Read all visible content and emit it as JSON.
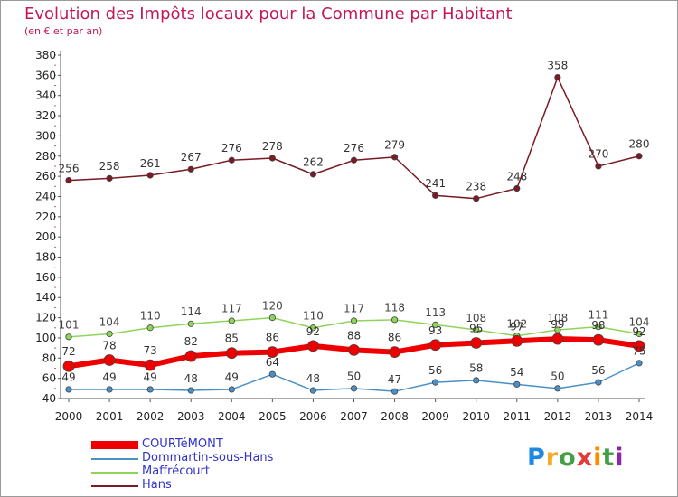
{
  "header": {
    "title": "Evolution des Impôts locaux pour la Commune par Habitant",
    "subtitle": "(en € et par an)"
  },
  "chart_data": {
    "type": "line",
    "title": "Evolution des Impôts locaux pour la Commune par Habitant",
    "subtitle": "(en € et par an)",
    "xlabel": "",
    "ylabel": "",
    "ylim": [
      40,
      380
    ],
    "ytick_step": 20,
    "grid": false,
    "legend_position": "bottom-left",
    "categories": [
      "2000",
      "2001",
      "2002",
      "2003",
      "2004",
      "2005",
      "2006",
      "2007",
      "2008",
      "2009",
      "2010",
      "2011",
      "2012",
      "2013",
      "2014"
    ],
    "series": [
      {
        "name": "Hans",
        "color": "#7a1a24",
        "values": [
          256,
          258,
          261,
          267,
          276,
          278,
          262,
          276,
          279,
          241,
          238,
          248,
          358,
          270,
          280
        ]
      },
      {
        "name": "Maffrécourt",
        "color": "#8fd45a",
        "values": [
          101,
          104,
          110,
          114,
          117,
          120,
          110,
          117,
          118,
          113,
          108,
          102,
          108,
          111,
          104
        ]
      },
      {
        "name": "Dommartin-sous-Hans",
        "color": "#4a90c8",
        "values": [
          49,
          49,
          49,
          48,
          49,
          64,
          48,
          50,
          47,
          56,
          58,
          54,
          50,
          56,
          75
        ]
      },
      {
        "name": "COURTéMONT",
        "color": "#ee0000",
        "values": [
          72,
          78,
          73,
          82,
          85,
          86,
          92,
          88,
          86,
          93,
          95,
          97,
          99,
          98,
          92
        ]
      }
    ],
    "legend": [
      "COURTéMONT",
      "Dommartin-sous-Hans",
      "Maffrécourt",
      "Hans"
    ]
  },
  "legend_text_color": "#3333cc",
  "logo": {
    "letters": [
      "P",
      "r",
      "o",
      "x",
      "i",
      "t",
      "i"
    ],
    "colors": [
      "#1e88e5",
      "#f9a825",
      "#43a047",
      "#e53935",
      "#fb8c00",
      "#43a047",
      "#8e24aa"
    ]
  }
}
